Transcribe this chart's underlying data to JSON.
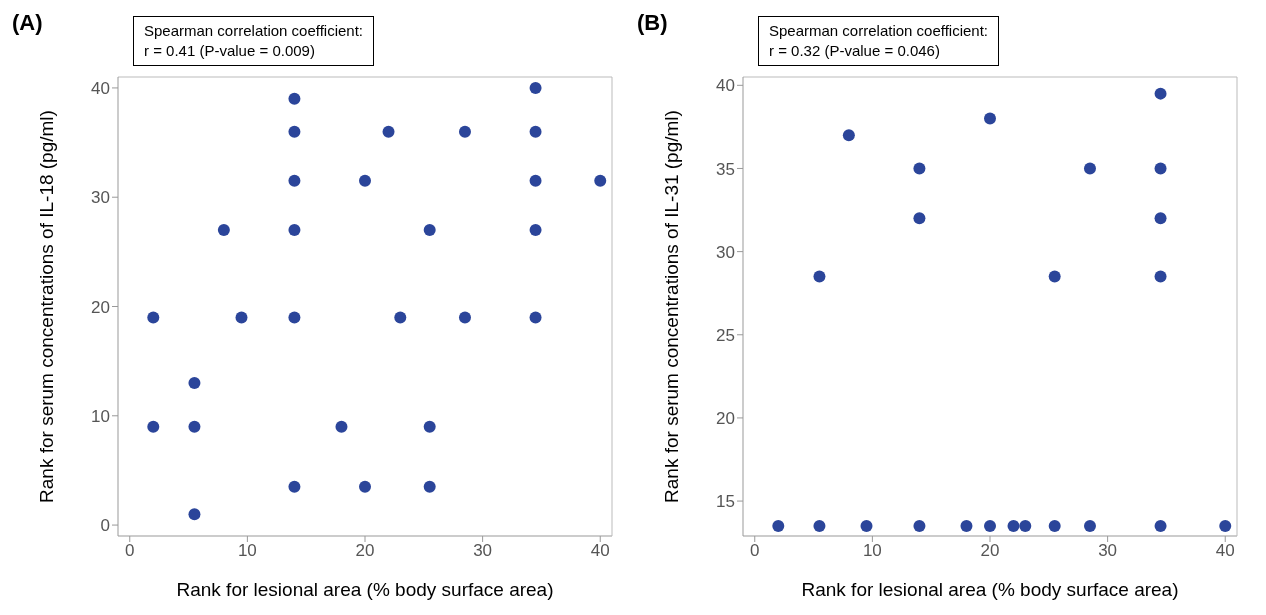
{
  "chart_data": [
    {
      "type": "scatter",
      "title": "(A)",
      "annotations": [
        "Spearman correlation coefficient:",
        "r = 0.41 (P-value = 0.009)"
      ],
      "xlabel": "Rank for lesional area (% body surface area)",
      "ylabel": "Rank for serum concentrations of IL-18 (pg/ml)",
      "xlim": [
        -1,
        41
      ],
      "ylim": [
        -1,
        41
      ],
      "xticks": [
        0,
        10,
        20,
        30,
        40
      ],
      "yticks": [
        0,
        10,
        20,
        30,
        40
      ],
      "marker": "circle",
      "series": [
        {
          "color": "#2b459a",
          "x": [
            2,
            2,
            5.5,
            5.5,
            5.5,
            8,
            9.5,
            14,
            14,
            14,
            14,
            14,
            14,
            18,
            20,
            20,
            22,
            23,
            25.5,
            25.5,
            25.5,
            28.5,
            28.5,
            34.5,
            34.5,
            34.5,
            34.5,
            34.5,
            40
          ],
          "values": [
            19,
            9,
            13,
            9,
            1,
            27,
            19,
            39,
            36,
            31.5,
            27,
            19,
            3.5,
            9,
            31.5,
            3.5,
            36,
            19,
            27,
            9,
            3.5,
            36,
            19,
            40,
            36,
            31.5,
            27,
            19,
            31.5
          ]
        }
      ]
    },
    {
      "type": "scatter",
      "title": "(B)",
      "annotations": [
        "Spearman correlation coefficient:",
        "r = 0.32 (P-value = 0.046)"
      ],
      "xlabel": "Rank for lesional area (% body surface area)",
      "ylabel": "Rank for serum concentrations of IL-31 (pg/ml)",
      "xlim": [
        -1,
        41
      ],
      "ylim": [
        12.9,
        40.5
      ],
      "xticks": [
        0,
        10,
        20,
        30,
        40
      ],
      "yticks": [
        15,
        20,
        25,
        30,
        35,
        40
      ],
      "marker": "circle",
      "series": [
        {
          "color": "#2b459a",
          "x": [
            2,
            5.5,
            9.5,
            14,
            18,
            20,
            22,
            23,
            25.5,
            28.5,
            34.5,
            40,
            5.5,
            8,
            14,
            14,
            20,
            28.5,
            25.5,
            34.5,
            34.5,
            34.5,
            34.5
          ],
          "values": [
            13.5,
            13.5,
            13.5,
            13.5,
            13.5,
            13.5,
            13.5,
            13.5,
            13.5,
            13.5,
            13.5,
            13.5,
            28.5,
            37,
            35,
            32,
            38,
            35,
            28.5,
            39.5,
            35,
            32,
            28.5
          ]
        }
      ]
    }
  ]
}
